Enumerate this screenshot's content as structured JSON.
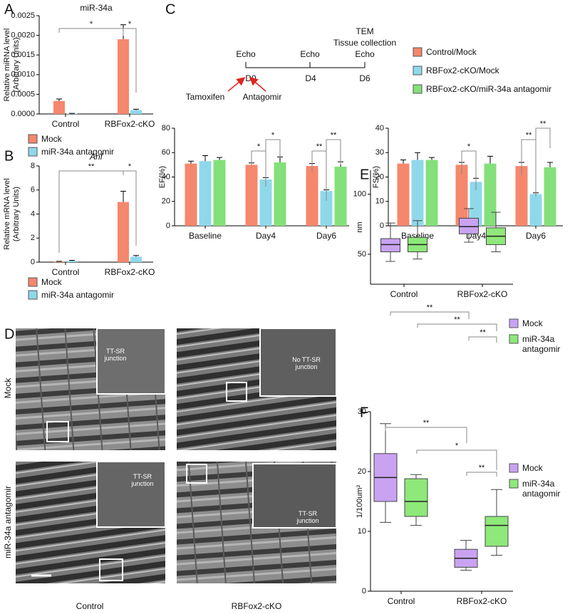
{
  "panel_labels": [
    "A",
    "B",
    "C",
    "D",
    "E",
    "F"
  ],
  "timeline": {
    "days": [
      "D0",
      "D4",
      "D6"
    ],
    "above": [
      [
        "Echo"
      ],
      [
        "Echo"
      ],
      [
        "TEM",
        "Tissue collection",
        "Echo"
      ]
    ],
    "treatments": [
      "Tamoxifen",
      "Antagomir"
    ]
  },
  "micrograph": {
    "rows": [
      "Mock",
      "miR-34a antagomir"
    ],
    "columns": [
      "Control",
      "RBFox2-cKO"
    ],
    "insets": [
      "TT-SR junction",
      "No TT-SR junction",
      "TT-SR junction",
      "TT-SR junction"
    ]
  },
  "chart_data": [
    {
      "type": "bar",
      "title": "miR-34a",
      "ylabel": [
        "Relative miRNA level",
        "(Arbitrary Units)"
      ],
      "categories": [
        "Control",
        "RBFox2-cKO"
      ],
      "series": [
        {
          "name": "Mock",
          "color": "#f5876c",
          "values": [
            0.00033,
            0.0019
          ],
          "errors": [
            5e-05,
            0.00037
          ]
        },
        {
          "name": "miR-34a antagomir",
          "color": "#8fd8ea",
          "values": [
            1e-05,
            0.0001
          ],
          "errors": [
            5e-06,
            2e-05
          ]
        }
      ],
      "ylim": [
        0,
        0.0025
      ],
      "yticks": [
        {
          "value": 0,
          "label": "0.0000"
        },
        0.0005,
        {
          "value": 0.001,
          "label": "0.0010"
        },
        0.0015,
        {
          "value": 0.002,
          "label": "0.0020"
        },
        0.0025
      ],
      "significance": [
        "*",
        "*"
      ]
    },
    {
      "type": "bar",
      "title": "Anf",
      "ylabel": [
        "Relative mRNA level",
        "(Arbitrary Units)"
      ],
      "categories": [
        "Control",
        "RBFox2-cKO"
      ],
      "series": [
        {
          "name": "Mock",
          "color": "#f5876c",
          "values": [
            0.05,
            5.0
          ],
          "errors": [
            0.02,
            0.9
          ]
        },
        {
          "name": "miR-34a antagomir",
          "color": "#8fd8ea",
          "values": [
            0.1,
            0.45
          ],
          "errors": [
            0.05,
            0.1
          ]
        }
      ],
      "ylim": [
        0,
        8
      ],
      "yticks": [
        0,
        2,
        4,
        6,
        8
      ],
      "significance": [
        "**",
        "*"
      ]
    },
    {
      "type": "bar",
      "ylabel": [
        "EF(%)"
      ],
      "categories": [
        "Baseline",
        "Day4",
        "Day6"
      ],
      "series": [
        {
          "name": "Control/Mock",
          "color": "#f5876c",
          "values": [
            51,
            50,
            49
          ],
          "errors": [
            2,
            1.5,
            2
          ]
        },
        {
          "name": "RBFox2-cKO/Mock",
          "color": "#8fd8ea",
          "values": [
            53,
            38,
            28.5
          ],
          "errors": [
            4.5,
            1.5,
            1
          ]
        },
        {
          "name": "RBFox2-cKO/miR-34a antagomir",
          "color": "#84e07a",
          "values": [
            54,
            52,
            48.5
          ],
          "errors": [
            2,
            4.5,
            4
          ]
        }
      ],
      "ylim": [
        0,
        80
      ],
      "yticks": [
        0,
        20,
        40,
        60,
        80
      ],
      "significance": [
        "*",
        "*",
        "**",
        "**"
      ]
    },
    {
      "type": "bar",
      "ylabel": [
        "FS(%)"
      ],
      "categories": [
        "Baseline",
        "Day4",
        "Day6"
      ],
      "series": [
        {
          "color": "#f5876c",
          "values": [
            25.5,
            25,
            24.5
          ],
          "errors": [
            1.5,
            1,
            1.5
          ]
        },
        {
          "color": "#8fd8ea",
          "values": [
            27,
            18,
            13
          ],
          "errors": [
            3,
            1.5,
            0.5
          ]
        },
        {
          "color": "#84e07a",
          "values": [
            27,
            25.5,
            24
          ],
          "errors": [
            1,
            3,
            2
          ]
        }
      ],
      "ylim": [
        0,
        40
      ],
      "yticks": [
        0,
        10,
        20,
        30,
        40
      ],
      "significance": [
        "*",
        "**",
        "**"
      ]
    },
    {
      "type": "box",
      "ylabel": [
        "nm"
      ],
      "categories": [
        "Control",
        "RBFox2-cKO"
      ],
      "series": [
        {
          "name": "Mock",
          "color": "#c9a3f2",
          "boxes": [
            {
              "whislo": 44,
              "q1": 52,
              "med": 58,
              "q3": 63,
              "whishi": 76
            },
            {
              "whislo": 60,
              "q1": 67,
              "med": 73,
              "q3": 80,
              "whishi": 88
            }
          ]
        },
        {
          "name": "miR-34a antagomir",
          "color": "#8ee87a",
          "boxes": [
            {
              "whislo": 46,
              "q1": 52,
              "med": 58,
              "q3": 64,
              "whishi": 78
            },
            {
              "whislo": 52,
              "q1": 58,
              "med": 65,
              "q3": 72,
              "whishi": 85
            }
          ]
        }
      ],
      "ylim": [
        25,
        120
      ],
      "yticks": [
        50,
        100
      ],
      "significance": [
        "**",
        "**",
        "**"
      ]
    },
    {
      "type": "box",
      "ylabel": [
        "1/100um²"
      ],
      "categories": [
        "Control",
        "RBFox2-cKO"
      ],
      "series": [
        {
          "name": "Mock",
          "color": "#c9a3f2",
          "boxes": [
            {
              "whislo": 11.5,
              "q1": 15,
              "med": 19,
              "q3": 23,
              "whishi": 28
            },
            {
              "whislo": 3.5,
              "q1": 4,
              "med": 5.5,
              "q3": 7,
              "whishi": 8.5
            }
          ]
        },
        {
          "name": "miR-34a antagomir",
          "color": "#8ee87a",
          "boxes": [
            {
              "whislo": 11,
              "q1": 12.5,
              "med": 15,
              "q3": 18.8,
              "whishi": 19.5
            },
            {
              "whislo": 6,
              "q1": 7.5,
              "med": 11,
              "q3": 12.5,
              "whishi": 17
            }
          ]
        }
      ],
      "ylim": [
        0,
        30
      ],
      "yticks": [
        0,
        10,
        20,
        30
      ],
      "significance": [
        "**",
        "*",
        "**"
      ]
    }
  ]
}
